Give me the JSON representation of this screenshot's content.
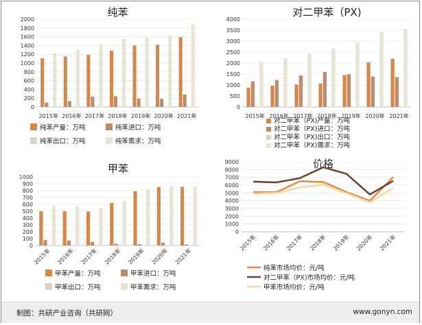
{
  "source": "制图：共研产业咨询（共研网）",
  "website": "www.gonyn.com",
  "colors": {
    "production": "#d4884a",
    "import": "#c08a6c",
    "export": "#dcd2c6",
    "demand": "#e9e3d6",
    "pure_benzene_price": "#e08c4a",
    "px_price": "#6b4535",
    "toluene_price": "#f5d6a6"
  },
  "chart_data": [
    {
      "type": "bar",
      "title": "纯苯",
      "categories": [
        "2015年",
        "2016年",
        "2017年",
        "2018年",
        "2019年",
        "2020年",
        "2021年"
      ],
      "ylim": [
        0,
        2000
      ],
      "yticks": [
        0,
        200,
        400,
        600,
        800,
        1000,
        1200,
        1400,
        1600,
        1800,
        2000
      ],
      "legend_position": "bottom",
      "series": [
        {
          "name": "纯苯产量：万吨",
          "values": [
            1110,
            1150,
            1190,
            1280,
            1400,
            1420,
            1590
          ]
        },
        {
          "name": "纯苯进口：万吨",
          "values": [
            100,
            135,
            235,
            245,
            190,
            185,
            285
          ]
        },
        {
          "name": "纯苯出口：万吨",
          "values": [
            0,
            0,
            0,
            0,
            0,
            0,
            0
          ]
        },
        {
          "name": "纯苯需求：万吨",
          "values": [
            1220,
            1300,
            1430,
            1550,
            1590,
            1620,
            1880
          ]
        }
      ]
    },
    {
      "type": "bar",
      "title": "对二甲苯（PX)",
      "categories": [
        "2015年",
        "2016年",
        "2017年",
        "2018年",
        "2019年",
        "2020年",
        "2021年"
      ],
      "ylim": [
        0,
        4000
      ],
      "yticks": [
        0,
        500,
        1000,
        1500,
        2000,
        2500,
        3000,
        3500,
        4000
      ],
      "legend_position": "bottom",
      "series": [
        {
          "name": "对二甲苯（PX)产量：万吨",
          "values": [
            880,
            970,
            1020,
            1070,
            1450,
            2040,
            2200
          ]
        },
        {
          "name": "对二甲苯（PX)进口：万吨",
          "values": [
            1170,
            1230,
            1440,
            1590,
            1490,
            1390,
            1360
          ]
        },
        {
          "name": "对二甲苯（PX)出口：万吨",
          "values": [
            0,
            0,
            0,
            0,
            0,
            0,
            0
          ]
        },
        {
          "name": "对二甲苯（PX)需求：万吨",
          "values": [
            2060,
            2200,
            2440,
            2670,
            2930,
            3420,
            3550
          ]
        }
      ]
    },
    {
      "type": "bar",
      "title": "甲苯",
      "categories": [
        "2015年",
        "2016年",
        "2017年",
        "2018年",
        "2019年",
        "2020年",
        "2021年"
      ],
      "ylim": [
        0,
        1000
      ],
      "yticks": [
        0,
        100,
        200,
        300,
        400,
        500,
        600,
        700,
        800,
        900,
        1000
      ],
      "legend_position": "bottom",
      "series": [
        {
          "name": "甲苯产量：万吨",
          "values": [
            500,
            500,
            495,
            620,
            790,
            855,
            855
          ]
        },
        {
          "name": "甲苯进口：万吨",
          "values": [
            78,
            72,
            50,
            25,
            20,
            40,
            15
          ]
        },
        {
          "name": "甲苯出口：万吨",
          "values": [
            0,
            0,
            0,
            0,
            0,
            0,
            0
          ]
        },
        {
          "name": "甲苯需求：万吨",
          "values": [
            580,
            570,
            545,
            650,
            820,
            870,
            860
          ]
        }
      ]
    },
    {
      "type": "line",
      "title": "价格",
      "categories": [
        "2015年",
        "2016年",
        "2017年",
        "2018年",
        "2019年",
        "2020年",
        "2021年"
      ],
      "ylim": [
        0,
        9000
      ],
      "yticks": [
        0,
        1000,
        2000,
        3000,
        4000,
        5000,
        6000,
        7000,
        8000,
        9000
      ],
      "legend_position": "bottom",
      "series": [
        {
          "name": "纯苯市场均价：元/吨",
          "values": [
            5100,
            5100,
            6500,
            6400,
            5100,
            4000,
            7050
          ]
        },
        {
          "name": "对二甲苯（PX)市场均价：元/吨",
          "values": [
            6450,
            6350,
            6900,
            8300,
            7450,
            4800,
            6550
          ]
        },
        {
          "name": "甲苯市场均价：元/吨",
          "values": [
            4900,
            5000,
            5700,
            6050,
            4950,
            3800,
            5650
          ]
        }
      ]
    }
  ]
}
